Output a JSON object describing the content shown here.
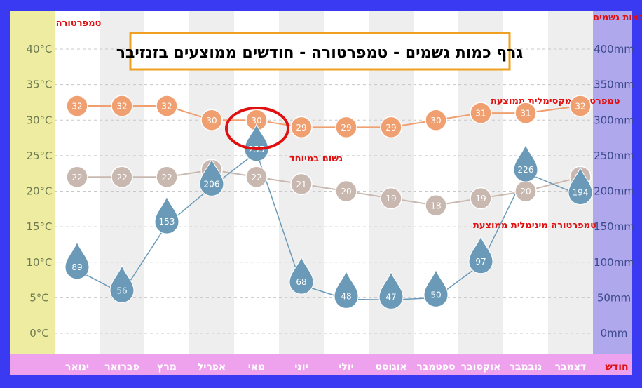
{
  "chart_data": {
    "type": "line",
    "title": "גרף כמות גשמים - טמפרטורה - חודשים ממוצעים בזנזיבר",
    "left_axis_label": "טמפרטורה",
    "right_axis_label": "כמות גשמים",
    "x_axis_label": "חודש",
    "categories": [
      "ינואר",
      "פברואר",
      "מרץ",
      "אפריל",
      "מאי",
      "יוני",
      "יולי",
      "אוגוסט",
      "ספטמבר",
      "אוקטובר",
      "נובמבר",
      "דצמבר"
    ],
    "left_axis": {
      "unit": "°C",
      "min": 0,
      "max": 40,
      "ticks": [
        "0°C",
        "5°C",
        "10°C",
        "15°C",
        "20°C",
        "25°C",
        "30°C",
        "35°C",
        "40°C"
      ]
    },
    "right_axis": {
      "unit": "mm",
      "min": 0,
      "max": 400,
      "ticks": [
        "0mm",
        "50mm",
        "100mm",
        "150mm",
        "200mm",
        "250mm",
        "300mm",
        "350mm",
        "400mm"
      ]
    },
    "grid": "horizontal dashed",
    "series": [
      {
        "name": "טמפרטורה מקסימלית ממוצעת",
        "axis": "left",
        "color": "#f0a070",
        "values": [
          32,
          32,
          32,
          30,
          30,
          29,
          29,
          29,
          30,
          31,
          31,
          32
        ]
      },
      {
        "name": "טמפרטורה מינימלית ממוצעת",
        "axis": "left",
        "color": "#c9b8b0",
        "values": [
          22,
          22,
          22,
          23,
          22,
          21,
          20,
          19,
          18,
          19,
          20,
          22
        ]
      },
      {
        "name": "כמות גשמים",
        "axis": "right",
        "color": "#6a9ab8",
        "values": [
          89,
          56,
          153,
          206,
          255,
          68,
          48,
          47,
          50,
          97,
          226,
          194
        ]
      }
    ],
    "annotations": [
      {
        "text": "גשום במיוחד",
        "month": "מאי",
        "color": "#e01010"
      }
    ]
  },
  "colors": {
    "frame": "#3a3af2",
    "left_axis_band": "#eeeca0",
    "right_axis_band": "#b0a8ec",
    "month_band": "#eea2ee",
    "alt_column": "#eeeeee",
    "title_border": "#f0a020",
    "red_text": "#e01010"
  }
}
